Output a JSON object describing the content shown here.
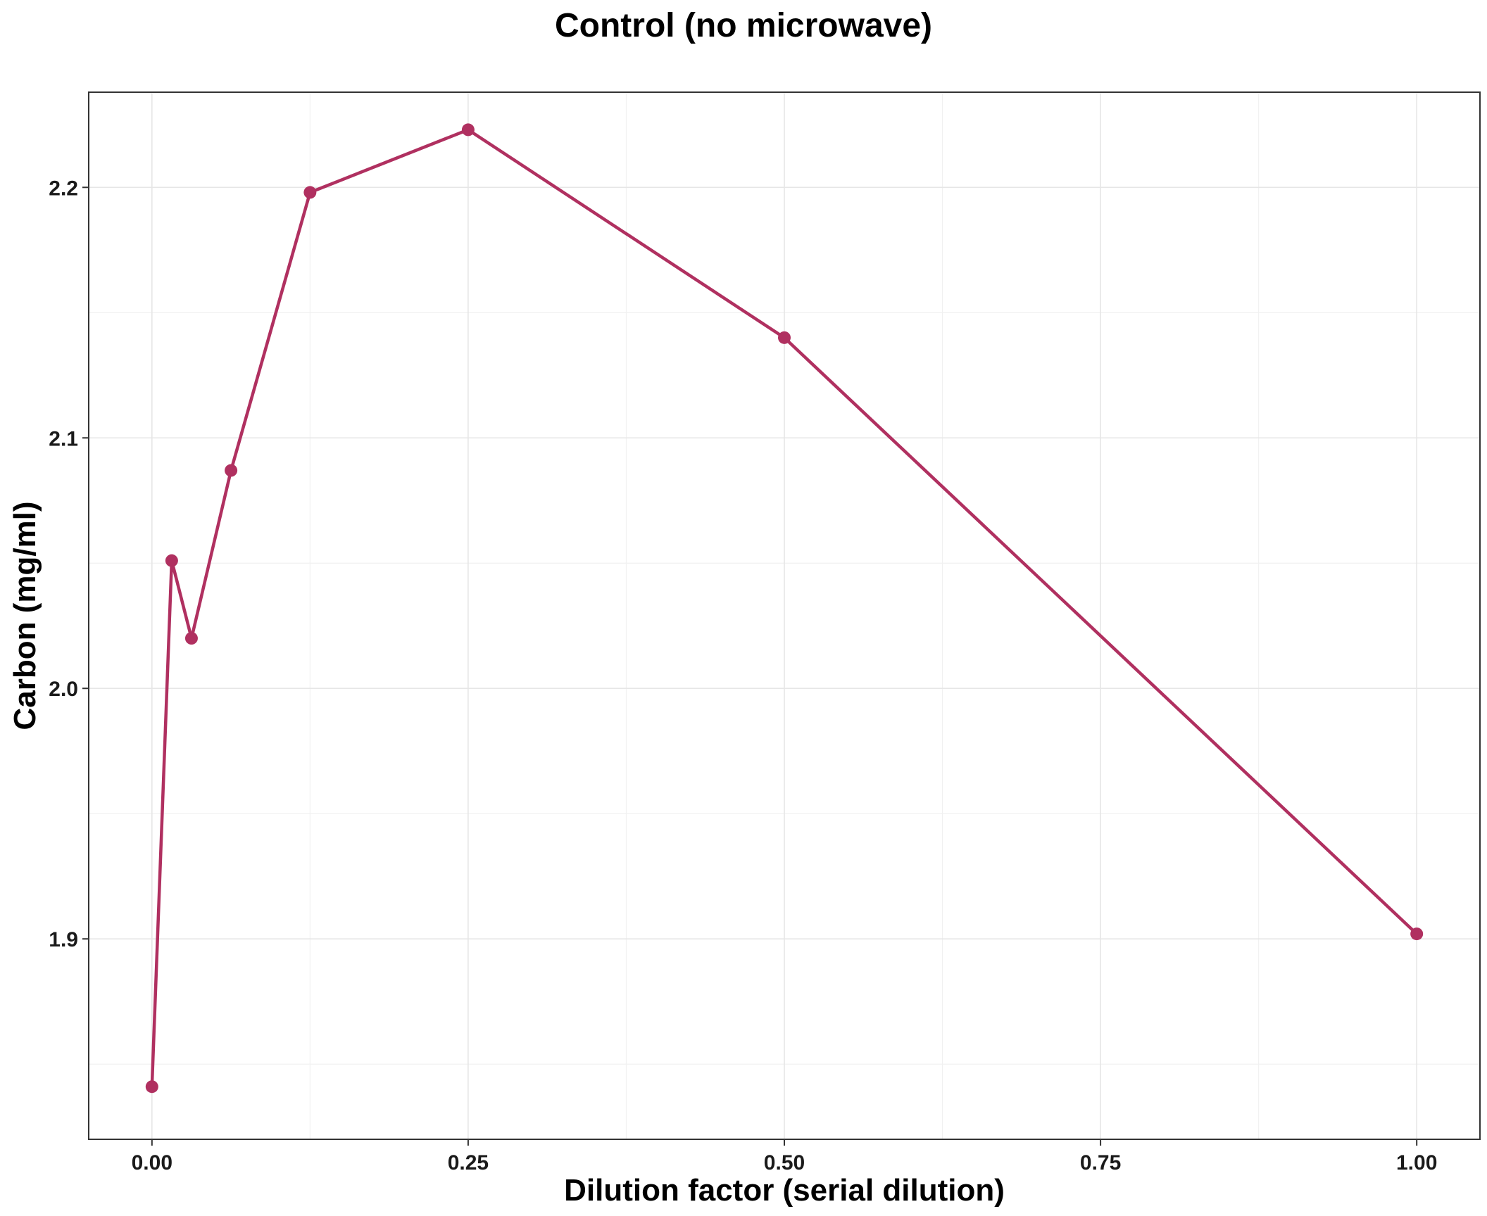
{
  "chart_data": {
    "type": "line",
    "title": "Control (no microwave)",
    "xlabel": "Dilution factor (serial dilution)",
    "ylabel": "Carbon (mg/ml)",
    "xlim": [
      -0.05,
      1.05
    ],
    "ylim": [
      1.82,
      2.238
    ],
    "x_ticks": [
      0.0,
      0.25,
      0.5,
      0.75,
      1.0
    ],
    "x_tick_labels": [
      "0.00",
      "0.25",
      "0.50",
      "0.75",
      "1.00"
    ],
    "y_ticks": [
      1.9,
      2.0,
      2.1,
      2.2
    ],
    "y_tick_labels": [
      "1.9",
      "2.0",
      "2.1",
      "2.2"
    ],
    "grid": true,
    "series": [
      {
        "color": "#B03060",
        "x": [
          0.0,
          0.015625,
          0.03125,
          0.0625,
          0.125,
          0.25,
          0.5,
          1.0
        ],
        "y": [
          1.841,
          2.051,
          2.02,
          2.087,
          2.198,
          2.223,
          2.14,
          1.902
        ]
      }
    ]
  }
}
